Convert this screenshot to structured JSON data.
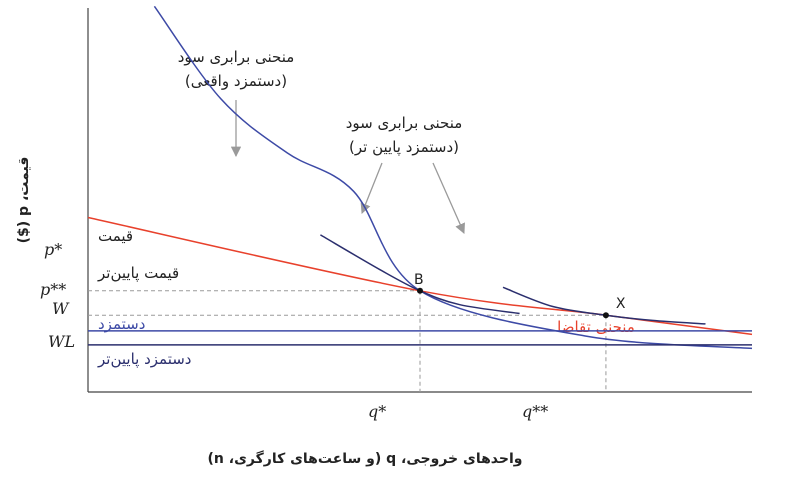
{
  "chart_data": {
    "type": "line",
    "xlabel": "واحدهای خروجی، q (و ساعت‌های کارگری، n)",
    "ylabel": "قیمت، p ($)",
    "x_ticks": [
      "q*",
      "q**"
    ],
    "y_ticks": [
      "p*",
      "p**",
      "W",
      "WL"
    ],
    "series": [
      {
        "name": "منحنی تقاضا",
        "color": "#e8412c",
        "points": [
          [
            0,
            1.0
          ],
          [
            1.0,
            0.58
          ],
          [
            1.56,
            0.44
          ],
          [
            2.0,
            0.33
          ]
        ]
      },
      {
        "name": "منحنی برابری سود (دستمزد واقعی)",
        "color": "#3d4aa6",
        "points": [
          [
            0.2,
            2.21
          ],
          [
            0.4,
            1.68
          ],
          [
            0.6,
            1.37
          ],
          [
            0.8,
            1.15
          ],
          [
            1.0,
            0.58
          ],
          [
            1.5,
            0.32
          ],
          [
            2.0,
            0.25
          ]
        ]
      },
      {
        "name": "منحنی برابری سود (دستمزد پایین تر)",
        "color": "#2b2f6e",
        "points": [
          [
            0.7,
            0.9
          ],
          [
            0.88,
            0.7
          ],
          [
            1.0,
            0.58
          ],
          [
            1.12,
            0.5
          ],
          [
            1.3,
            0.45
          ]
        ]
      },
      {
        "name": "منحنی برابری سود (دستمزد پایین تر)",
        "color": "#2b2f6e",
        "points": [
          [
            1.25,
            0.6
          ],
          [
            1.4,
            0.49
          ],
          [
            1.56,
            0.44
          ],
          [
            1.7,
            0.41
          ],
          [
            1.86,
            0.39
          ]
        ]
      },
      {
        "name": "دستمزد",
        "color": "#3d4aa6",
        "points": [
          [
            0,
            0.35
          ],
          [
            2.0,
            0.35
          ]
        ]
      },
      {
        "name": "دستمزد پایین‌تر",
        "color": "#2b2f6e",
        "points": [
          [
            0,
            0.27
          ],
          [
            2.0,
            0.27
          ]
        ]
      }
    ],
    "points": [
      {
        "label": "B",
        "x": 1.0,
        "y": 0.58
      },
      {
        "label": "X",
        "x": 1.56,
        "y": 0.44
      }
    ],
    "annotations": [
      {
        "text": "منحنی برابری سود",
        "sub": "(دستمزد واقعی)"
      },
      {
        "text": "منحنی برابری سود",
        "sub": "(دستمزد پایین تر)"
      },
      {
        "text": "قیمت"
      },
      {
        "text": "قیمت پایین‌تر"
      },
      {
        "text": "دستمزد"
      },
      {
        "text": "دستمزد پایین‌تر"
      },
      {
        "text": "منحنی تقاضا"
      }
    ],
    "xlim": [
      0,
      2.0
    ],
    "ylim": [
      0,
      2.2
    ],
    "grid": false,
    "legend": "none"
  }
}
